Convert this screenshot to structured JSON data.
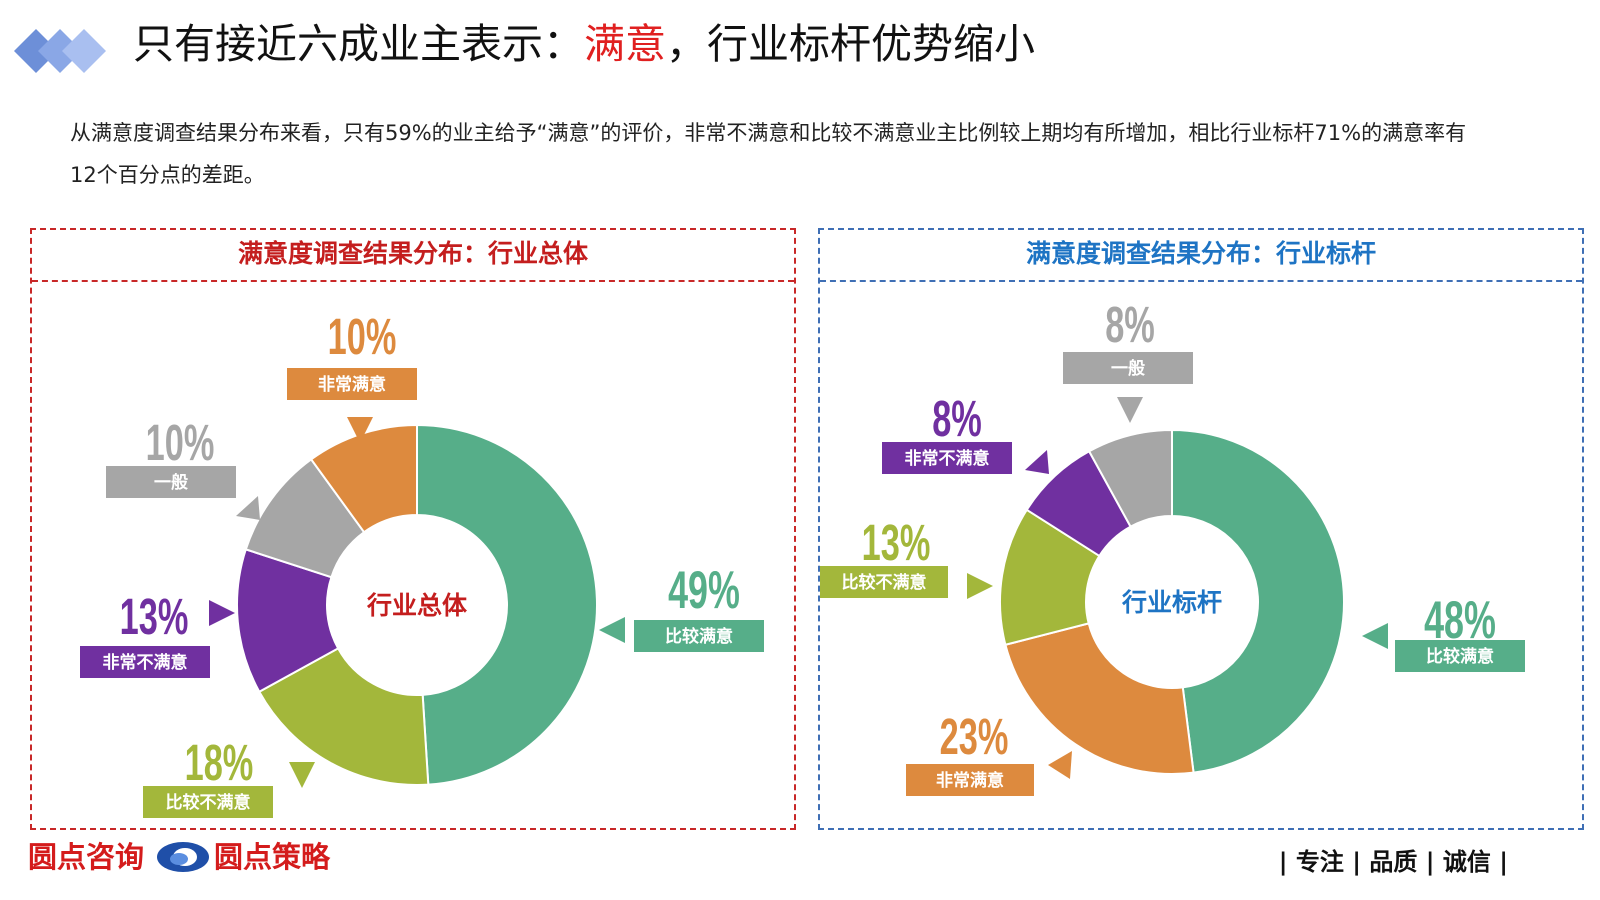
{
  "title": {
    "prefix": "只有接近六成业主表示：",
    "highlight": "满意",
    "suffix": "，行业标杆优势缩小"
  },
  "description": "从满意度调查结果分布来看，只有59%的业主给予“满意”的评价，非常不满意和比较不满意业主比例较上期均有所增加，相比行业标杆71%的满意率有12个百分点的差距。",
  "colors": {
    "比较满意": "#56ae89",
    "比较不满意": "#a3b73b",
    "非常不满意": "#7030a0",
    "一般": "#a6a6a6",
    "非常满意": "#dd8a3e",
    "highlight_red": "#e02020",
    "left_accent": "#c41e1e",
    "right_accent": "#1e74c4"
  },
  "chart_data": [
    {
      "type": "pie",
      "donut": true,
      "title": "满意度调查结果分布：行业总体",
      "center_label": "行业总体",
      "series": [
        {
          "name": "比较满意",
          "value": 49,
          "label": "49%"
        },
        {
          "name": "比较不满意",
          "value": 18,
          "label": "18%"
        },
        {
          "name": "非常不满意",
          "value": 13,
          "label": "13%"
        },
        {
          "name": "一般",
          "value": 10,
          "label": "10%"
        },
        {
          "name": "非常满意",
          "value": 10,
          "label": "10%"
        }
      ]
    },
    {
      "type": "pie",
      "donut": true,
      "title": "满意度调查结果分布：行业标杆",
      "center_label": "行业标杆",
      "series": [
        {
          "name": "比较满意",
          "value": 48,
          "label": "48%"
        },
        {
          "name": "非常满意",
          "value": 23,
          "label": "23%"
        },
        {
          "name": "比较不满意",
          "value": 13,
          "label": "13%"
        },
        {
          "name": "非常不满意",
          "value": 8,
          "label": "8%"
        },
        {
          "name": "一般",
          "value": 8,
          "label": "8%"
        }
      ]
    }
  ],
  "footer": {
    "brand1": "圆点咨询",
    "brand2": "圆点策略",
    "slogan": "| 专注 | 品质 | 诚信 |"
  },
  "icons": {
    "logo": "blue-diamond-logo",
    "brand": "blue-ring-logo"
  }
}
